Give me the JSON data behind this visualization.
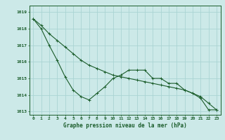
{
  "title": "Graphe pression niveau de la mer (hPa)",
  "background_color": "#cce9e8",
  "grid_color": "#aad4d3",
  "line_color": "#1a5c2a",
  "x_labels": [
    "0",
    "1",
    "2",
    "3",
    "4",
    "5",
    "6",
    "7",
    "8",
    "9",
    "10",
    "11",
    "12",
    "13",
    "14",
    "15",
    "16",
    "17",
    "18",
    "19",
    "20",
    "21",
    "22",
    "23"
  ],
  "hours": [
    0,
    1,
    2,
    3,
    4,
    5,
    6,
    7,
    8,
    9,
    10,
    11,
    12,
    13,
    14,
    15,
    16,
    17,
    18,
    19,
    20,
    21,
    22,
    23
  ],
  "line1": [
    1018.6,
    1018.0,
    1017.0,
    1016.1,
    1015.1,
    1014.3,
    1013.9,
    1013.7,
    1014.1,
    1014.5,
    1015.0,
    1015.2,
    1015.5,
    1015.5,
    1015.5,
    1015.0,
    1015.0,
    1014.7,
    1014.7,
    1014.3,
    1014.1,
    1013.8,
    1013.1,
    1013.1
  ],
  "line2": [
    1018.6,
    1018.2,
    1017.7,
    1017.3,
    1016.9,
    1016.5,
    1016.1,
    1015.8,
    1015.6,
    1015.4,
    1015.2,
    1015.1,
    1015.0,
    1014.9,
    1014.8,
    1014.7,
    1014.6,
    1014.5,
    1014.4,
    1014.3,
    1014.1,
    1013.9,
    1013.5,
    1013.1
  ],
  "ylim": [
    1012.8,
    1019.4
  ],
  "yticks": [
    1013,
    1014,
    1015,
    1016,
    1017,
    1018,
    1019
  ]
}
